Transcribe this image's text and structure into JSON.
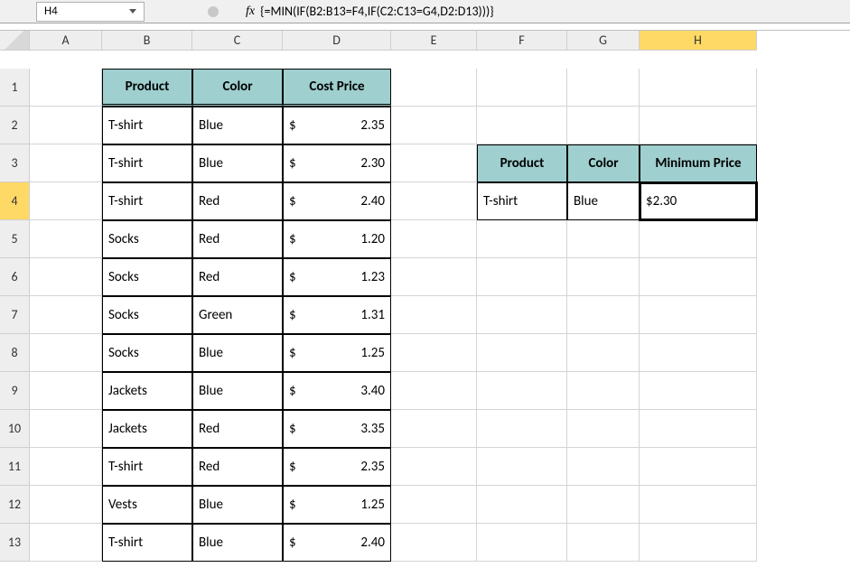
{
  "active_cell": "H4",
  "fx_label": "fx",
  "formula": "{=MIN(IF(B2:B13=F4,IF(C2:C13=G4,D2:D13)))}",
  "columns": [
    "A",
    "B",
    "C",
    "D",
    "E",
    "F",
    "G",
    "H"
  ],
  "row_labels": [
    "1",
    "2",
    "3",
    "4",
    "5",
    "6",
    "7",
    "8",
    "9",
    "10",
    "11",
    "12",
    "13"
  ],
  "active_col": "H",
  "active_row": "4",
  "main_headers": {
    "product": "Product",
    "color": "Color",
    "cost": "Cost Price"
  },
  "main_rows": [
    {
      "product": "T-shirt",
      "color": "Blue",
      "sym": "$",
      "price": "2.35"
    },
    {
      "product": "T-shirt",
      "color": "Blue",
      "sym": "$",
      "price": "2.30"
    },
    {
      "product": "T-shirt",
      "color": "Red",
      "sym": "$",
      "price": "2.40"
    },
    {
      "product": "Socks",
      "color": "Red",
      "sym": "$",
      "price": "1.20"
    },
    {
      "product": "Socks",
      "color": "Red",
      "sym": "$",
      "price": "1.23"
    },
    {
      "product": "Socks",
      "color": "Green",
      "sym": "$",
      "price": "1.31"
    },
    {
      "product": "Socks",
      "color": "Blue",
      "sym": "$",
      "price": "1.25"
    },
    {
      "product": "Jackets",
      "color": "Blue",
      "sym": "$",
      "price": "3.40"
    },
    {
      "product": "Jackets",
      "color": "Red",
      "sym": "$",
      "price": "3.35"
    },
    {
      "product": "T-shirt",
      "color": "Red",
      "sym": "$",
      "price": "2.35"
    },
    {
      "product": "Vests",
      "color": "Blue",
      "sym": "$",
      "price": "1.25"
    },
    {
      "product": "T-shirt",
      "color": "Blue",
      "sym": "$",
      "price": "2.40"
    }
  ],
  "mini_headers": {
    "product": "Product",
    "color": "Color",
    "min": "Minimum Price"
  },
  "mini_row": {
    "product": "T-shirt",
    "color": "Blue",
    "sym": "$",
    "price": "2.30"
  },
  "colors": {
    "header_bg": "#eeeeee",
    "active_hdr_bg": "#ffd966",
    "table_header_bg": "#9fcfcf",
    "grid_line": "#d4d4d4",
    "border": "#000000"
  }
}
